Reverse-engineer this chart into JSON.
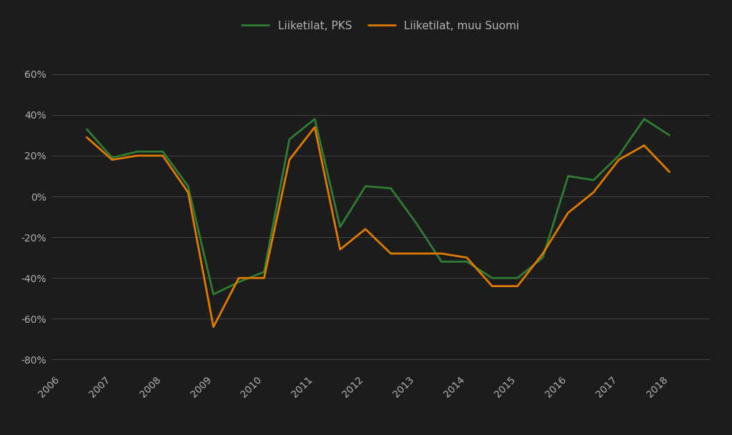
{
  "pks": {
    "x": [
      2006.5,
      2007.0,
      2007.5,
      2008.0,
      2008.5,
      2009.0,
      2009.5,
      2010.0,
      2010.5,
      2011.0,
      2011.5,
      2012.0,
      2012.5,
      2013.0,
      2013.5,
      2014.0,
      2014.5,
      2015.0,
      2015.5,
      2016.0,
      2016.5,
      2017.0,
      2017.5,
      2018.0,
      2018.5
    ],
    "y": [
      33,
      19,
      22,
      22,
      5,
      -48,
      -42,
      -37,
      28,
      38,
      -15,
      5,
      4,
      -13,
      -32,
      -32,
      -40,
      -40,
      -30,
      10,
      8,
      20,
      38,
      30,
      null
    ]
  },
  "muu_suomi": {
    "x": [
      2006.5,
      2007.0,
      2007.5,
      2008.0,
      2008.5,
      2009.0,
      2009.5,
      2010.0,
      2010.5,
      2011.0,
      2011.5,
      2012.0,
      2012.5,
      2013.0,
      2013.5,
      2014.0,
      2014.5,
      2015.0,
      2015.5,
      2016.0,
      2016.5,
      2017.0,
      2017.5,
      2018.0,
      2018.5
    ],
    "y": [
      29,
      18,
      20,
      20,
      2,
      -64,
      -40,
      -40,
      18,
      34,
      -26,
      -16,
      -28,
      -28,
      -28,
      -30,
      -44,
      -44,
      -28,
      -8,
      2,
      18,
      25,
      12,
      null
    ]
  },
  "pks_color": "#2e7d32",
  "muu_color": "#e07b00",
  "background_color": "#1c1c1c",
  "plot_bg_color": "#1c1c1c",
  "grid_color": "#444444",
  "text_color": "#b0b0b0",
  "legend_labels": [
    "Liiketilat, PKS",
    "Liiketilat, muu Suomi"
  ],
  "ylim": [
    -85,
    75
  ],
  "yticks": [
    -80,
    -60,
    -40,
    -20,
    0,
    20,
    40,
    60
  ],
  "xlim": [
    2005.8,
    2018.8
  ],
  "xticks": [
    2006,
    2007,
    2008,
    2009,
    2010,
    2011,
    2012,
    2013,
    2014,
    2015,
    2016,
    2017,
    2018
  ]
}
